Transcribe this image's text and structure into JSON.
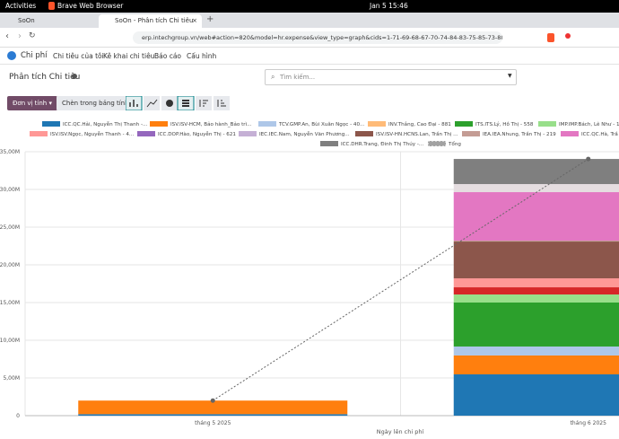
{
  "system_bar": {
    "activities": "Activities",
    "app": "Brave Web Browser",
    "clock": "Jan 5  15:46"
  },
  "browser": {
    "tabs": [
      {
        "title": "SoOn"
      },
      {
        "title": "SoOn - Phân tích Chi tiêu"
      }
    ],
    "url": "erp.intechgroup.vn/web#action=820&model=hr.expense&view_type=graph&cids=1-71-69-68-67-70-74-84-83-75-85-73-88-76-89-66-..."
  },
  "app": {
    "name": "Chi phí",
    "menu": [
      "Chi tiêu của tôi",
      "Kê khai chi tiêu",
      "Báo cáo",
      "Cấu hình"
    ],
    "breadcrumb": "Phân tích Chi tiêu",
    "search_placeholder": "Tìm kiếm...",
    "measure_button": "Đơn vị tính",
    "insert_button": "Chèn trong bảng tính"
  },
  "chart_data": {
    "type": "bar",
    "stacked": true,
    "x_label": "Ngày lên chi phí",
    "categories": [
      "tháng 5 2025",
      "tháng 6 2025"
    ],
    "ylim": [
      0,
      35000000
    ],
    "yticks": [
      0,
      {
        "value": 5000000,
        "label": "5,00M"
      },
      {
        "value": 10000000,
        "label": "10,00M"
      },
      {
        "value": 15000000,
        "label": "15,00M"
      },
      {
        "value": 20000000,
        "label": "20,00M"
      },
      {
        "value": 25000000,
        "label": "25,00M"
      },
      {
        "value": 30000000,
        "label": "30,00M"
      },
      {
        "value": 35000000,
        "label": "35,00M"
      }
    ],
    "grid": true,
    "series": [
      {
        "name": "ICC.QC.Hải, Nguyễn Thị Thanh -...",
        "color": "#1f77b4",
        "values": [
          200000,
          5480000
        ]
      },
      {
        "name": "ISV.ISV-HCM, Bảo hành_Bảo trì...",
        "color": "#ff7f0e",
        "values": [
          1800000,
          2500000
        ]
      },
      {
        "name": "TCV.GMP.An, Bùi Xuân Ngọc - 40...",
        "color": "#aec7e8",
        "values": [
          null,
          1190000
        ]
      },
      {
        "name": "INV.Thắng, Cao Đại - 881",
        "color": "#ffbb78",
        "values": [
          null,
          null
        ]
      },
      {
        "name": "ITS.ITS.Lý, Hồ Thị - 558",
        "color": "#2ca02c",
        "values": [
          null,
          5830000
        ]
      },
      {
        "name": "IMP.IMP.Bách, Lê Như - 1...",
        "color": "#98df8a",
        "values": [
          null,
          1070000
        ]
      },
      {
        "name": null,
        "color": "#d62728",
        "values": [
          null,
          950000
        ]
      },
      {
        "name": "ISV.ISV.Ngọc, Nguyễn Thanh - 4...",
        "color": "#ff9896",
        "values": [
          null,
          1190000
        ]
      },
      {
        "name": "ICC.DOP.Hào, Nguyễn Thị - 621",
        "color": "#9467bd",
        "values": [
          null,
          null
        ]
      },
      {
        "name": "IEC.IEC.Nam, Nguyễn Văn Phương...",
        "color": "#c5b0d5",
        "values": [
          null,
          null
        ]
      },
      {
        "name": "ISV.ISV-HN.HCNS.Lan, Trần Thị ...",
        "color": "#8c564b",
        "values": [
          null,
          4880000
        ]
      },
      {
        "name": "IEA.IEA.Nhung, Trần Thị - 219",
        "color": "#c49c94",
        "values": [
          null,
          120000
        ]
      },
      {
        "name": "ICC.QC.Hà, Trầ",
        "color": "#e377c2",
        "values": [
          null,
          6430000
        ]
      },
      {
        "name": null,
        "color": "#e5dde0",
        "values": [
          null,
          1070000
        ]
      },
      {
        "name": "ICC.DHR.Trang, Đinh Thị Thúy -...",
        "color": "#7f7f7f",
        "values": [
          null,
          3330000
        ]
      },
      {
        "name": "Tổng",
        "type": "line",
        "dashed": true,
        "color": "#666666",
        "values": [
          2000000,
          34040000
        ]
      }
    ]
  }
}
